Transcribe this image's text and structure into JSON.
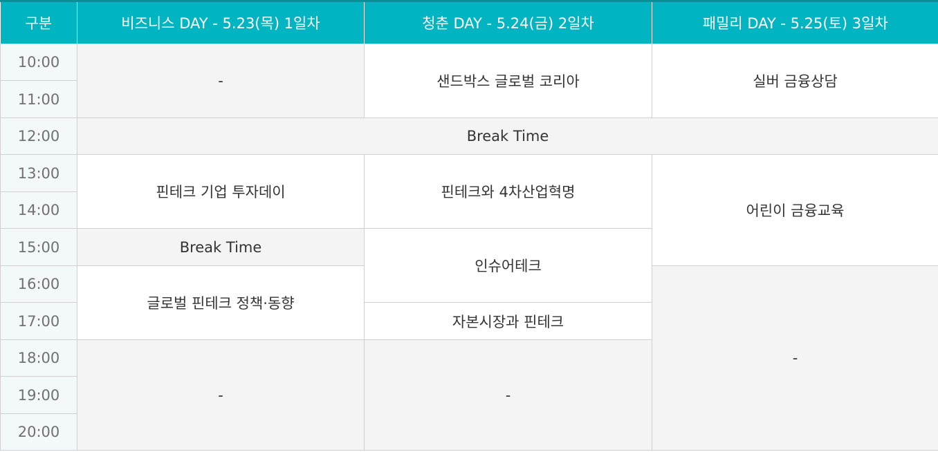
{
  "header": {
    "col_label": "구분",
    "day1": "비즈니스 DAY - 5.23(목) 1일차",
    "day2": "청춘 DAY - 5.24(금) 2일차",
    "day3": "패밀리 DAY - 5.25(토) 3일차"
  },
  "times": [
    "10:00",
    "11:00",
    "12:00",
    "13:00",
    "14:00",
    "15:00",
    "16:00",
    "17:00",
    "18:00",
    "19:00",
    "20:00"
  ],
  "day1": {
    "morning": "-",
    "investment_day": "핀테크 기업 투자데이",
    "break": "Break Time",
    "global_policy": "글로벌 핀테크 정책·동향",
    "evening": "-"
  },
  "day2": {
    "sandbox": "샌드박스 글로벌 코리아",
    "fourth_revolution": "핀테크와 4차산업혁명",
    "insurtech": "인슈어테크",
    "capital_market": "자본시장과 핀테크",
    "evening": "-"
  },
  "day3": {
    "silver": "실버 금융상담",
    "kids": "어린이 금융교육",
    "afternoon": "-"
  },
  "lunch_break": "Break Time"
}
